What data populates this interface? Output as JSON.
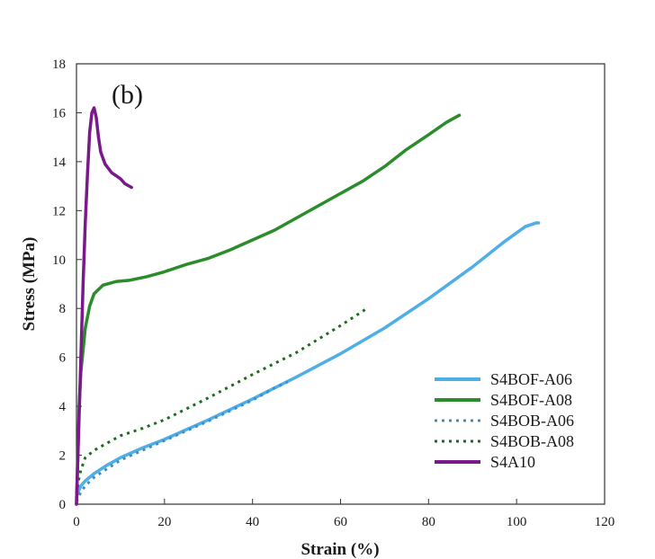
{
  "chart_data": {
    "type": "line",
    "panel_label": "(b)",
    "title": "",
    "xlabel": "Strain (%)",
    "ylabel": "Stress (MPa)",
    "xlim": [
      0,
      120
    ],
    "ylim": [
      0,
      18
    ],
    "xticks": [
      0,
      20,
      40,
      60,
      80,
      100,
      120
    ],
    "yticks": [
      0,
      2,
      4,
      6,
      8,
      10,
      12,
      14,
      16,
      18
    ],
    "grid": false,
    "legend_position": "bottom-right",
    "series": [
      {
        "name": "S4BOF-A06",
        "color": "#4faee6",
        "dash": "solid",
        "points": [
          [
            0,
            0.3
          ],
          [
            0.5,
            0.55
          ],
          [
            1,
            0.75
          ],
          [
            2,
            0.95
          ],
          [
            4,
            1.25
          ],
          [
            7,
            1.6
          ],
          [
            10,
            1.9
          ],
          [
            15,
            2.3
          ],
          [
            20,
            2.65
          ],
          [
            30,
            3.45
          ],
          [
            40,
            4.3
          ],
          [
            50,
            5.2
          ],
          [
            60,
            6.15
          ],
          [
            70,
            7.2
          ],
          [
            80,
            8.4
          ],
          [
            90,
            9.7
          ],
          [
            97,
            10.7
          ],
          [
            102,
            11.35
          ],
          [
            104.5,
            11.5
          ],
          [
            105,
            11.5
          ]
        ]
      },
      {
        "name": "S4BOF-A08",
        "color": "#2a8c2a",
        "dash": "solid",
        "points": [
          [
            0,
            0
          ],
          [
            0.3,
            2
          ],
          [
            0.6,
            4
          ],
          [
            1,
            5.4
          ],
          [
            2,
            7.2
          ],
          [
            3,
            8.1
          ],
          [
            4,
            8.6
          ],
          [
            6,
            8.95
          ],
          [
            9,
            9.1
          ],
          [
            12,
            9.15
          ],
          [
            16,
            9.3
          ],
          [
            20,
            9.5
          ],
          [
            25,
            9.8
          ],
          [
            30,
            10.05
          ],
          [
            35,
            10.4
          ],
          [
            40,
            10.8
          ],
          [
            45,
            11.2
          ],
          [
            50,
            11.7
          ],
          [
            55,
            12.2
          ],
          [
            60,
            12.7
          ],
          [
            65,
            13.2
          ],
          [
            70,
            13.8
          ],
          [
            75,
            14.5
          ],
          [
            80,
            15.1
          ],
          [
            84,
            15.6
          ],
          [
            87,
            15.9
          ]
        ]
      },
      {
        "name": "S4BOB-A06",
        "color": "#3a8fd0",
        "dash": "dotted",
        "points": [
          [
            0,
            0.1
          ],
          [
            1,
            0.5
          ],
          [
            2,
            0.75
          ],
          [
            4,
            1.1
          ],
          [
            7,
            1.45
          ],
          [
            10,
            1.8
          ],
          [
            15,
            2.2
          ],
          [
            20,
            2.6
          ],
          [
            30,
            3.4
          ],
          [
            40,
            4.25
          ],
          [
            45,
            4.75
          ],
          [
            48,
            5.0
          ]
        ]
      },
      {
        "name": "S4BOB-A08",
        "color": "#1a6e1a",
        "dash": "dotted",
        "points": [
          [
            0,
            0.4
          ],
          [
            0.5,
            1.0
          ],
          [
            1,
            1.4
          ],
          [
            2,
            1.9
          ],
          [
            4,
            2.2
          ],
          [
            7,
            2.5
          ],
          [
            10,
            2.8
          ],
          [
            15,
            3.1
          ],
          [
            20,
            3.45
          ],
          [
            30,
            4.35
          ],
          [
            40,
            5.3
          ],
          [
            50,
            6.2
          ],
          [
            60,
            7.3
          ],
          [
            66,
            8.0
          ]
        ]
      },
      {
        "name": "S4A10",
        "color": "#7a1a8a",
        "dash": "solid",
        "points": [
          [
            0,
            0
          ],
          [
            0.5,
            3
          ],
          [
            1,
            6
          ],
          [
            1.5,
            9
          ],
          [
            2,
            11.5
          ],
          [
            2.5,
            13.5
          ],
          [
            3,
            15.2
          ],
          [
            3.5,
            16
          ],
          [
            4,
            16.2
          ],
          [
            4.5,
            15.8
          ],
          [
            5,
            15
          ],
          [
            5.5,
            14.4
          ],
          [
            6.5,
            13.9
          ],
          [
            8,
            13.55
          ],
          [
            10,
            13.3
          ],
          [
            11,
            13.1
          ],
          [
            12.5,
            12.95
          ]
        ]
      }
    ]
  }
}
